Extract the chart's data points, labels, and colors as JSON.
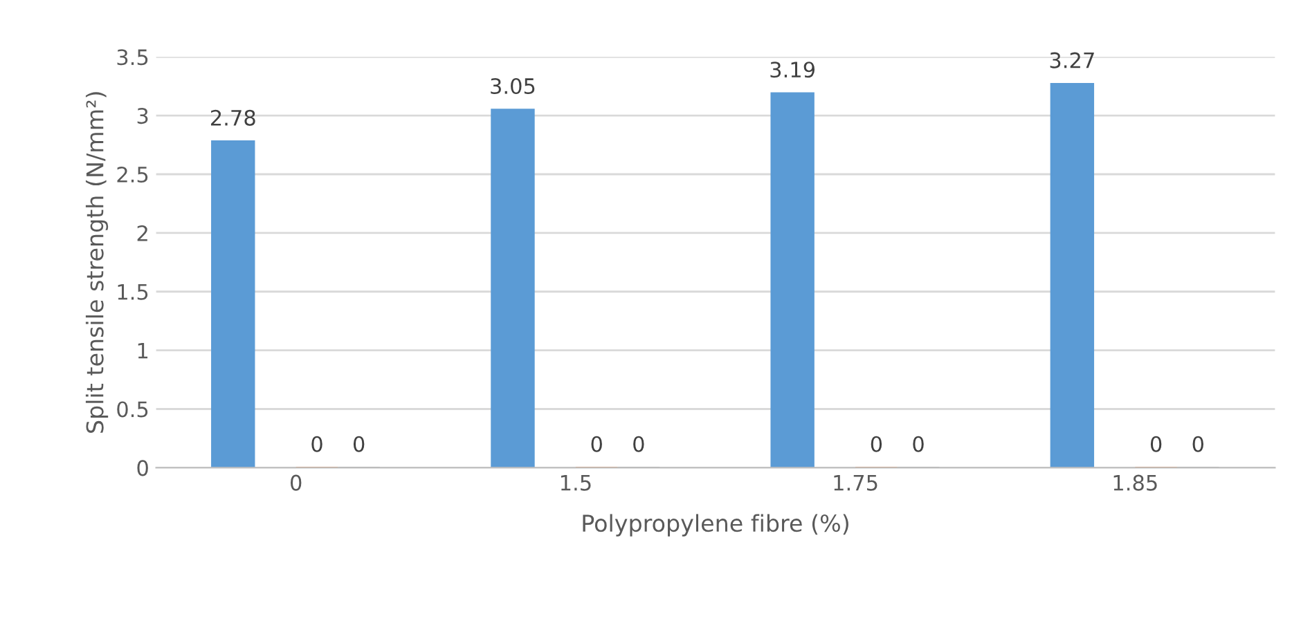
{
  "chart_data": {
    "type": "bar",
    "xlabel": "Polypropylene fibre (%)",
    "ylabel": "Split tensile strength (N/mm²)",
    "categories": [
      "0",
      "1.5",
      "1.75",
      "1.85"
    ],
    "series": [
      {
        "color": "#5b9bd5",
        "values": [
          2.78,
          3.05,
          3.19,
          3.27
        ]
      },
      {
        "values": [
          null,
          null,
          null,
          null
        ]
      },
      {
        "color": "#ed7d31",
        "values": [
          0,
          0,
          0,
          0
        ]
      },
      {
        "color": "#a5a5a5",
        "values": [
          0,
          0,
          0,
          0
        ]
      }
    ],
    "ylim": [
      0,
      3.5
    ],
    "yticks": [
      0,
      0.5,
      1,
      1.5,
      2,
      2.5,
      3,
      3.5
    ],
    "grid": "y",
    "legend": false,
    "data_labels": true
  }
}
